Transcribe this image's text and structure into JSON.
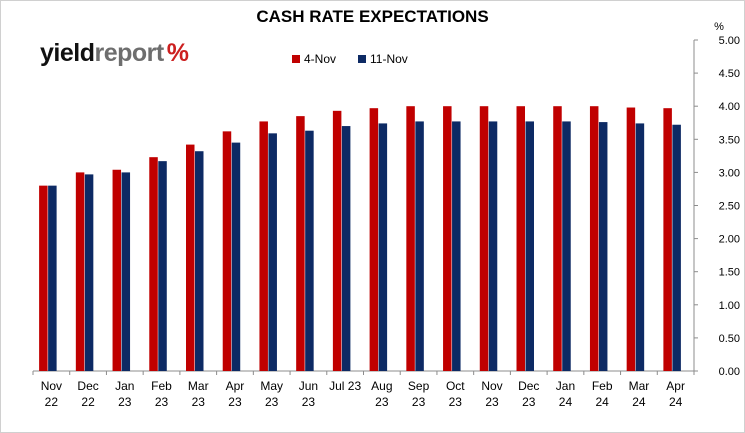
{
  "title": "CASH RATE EXPECTATIONS",
  "logo": {
    "part1": "yield",
    "part2": "report",
    "symbol": "%"
  },
  "chart_data": {
    "type": "bar",
    "title": "CASH RATE EXPECTATIONS",
    "ylabel": "%",
    "ylim": [
      0,
      5
    ],
    "y_ticks": [
      "0.00",
      "0.50",
      "1.00",
      "1.50",
      "2.00",
      "2.50",
      "3.00",
      "3.50",
      "4.00",
      "4.50",
      "5.00"
    ],
    "y_axis_side": "right",
    "legend_position": "top-center",
    "grid": false,
    "categories": [
      [
        "Nov",
        "22"
      ],
      [
        "Dec",
        "22"
      ],
      [
        "Jan",
        "23"
      ],
      [
        "Feb",
        "23"
      ],
      [
        "Mar",
        "23"
      ],
      [
        "Apr",
        "23"
      ],
      [
        "May",
        "23"
      ],
      [
        "Jun",
        "23"
      ],
      [
        "Jul 23",
        ""
      ],
      [
        "Aug",
        "23"
      ],
      [
        "Sep",
        "23"
      ],
      [
        "Oct",
        "23"
      ],
      [
        "Nov",
        "23"
      ],
      [
        "Dec",
        "23"
      ],
      [
        "Jan",
        "24"
      ],
      [
        "Feb",
        "24"
      ],
      [
        "Mar",
        "24"
      ],
      [
        "Apr",
        "24"
      ]
    ],
    "series": [
      {
        "name": "4-Nov",
        "color": "#c00000",
        "values": [
          2.8,
          3.0,
          3.04,
          3.23,
          3.42,
          3.62,
          3.77,
          3.85,
          3.93,
          3.97,
          4.0,
          4.0,
          4.0,
          4.0,
          4.0,
          4.0,
          3.98,
          3.97
        ]
      },
      {
        "name": "11-Nov",
        "color": "#0d2a64",
        "values": [
          2.8,
          2.97,
          3.0,
          3.17,
          3.32,
          3.45,
          3.59,
          3.63,
          3.7,
          3.74,
          3.77,
          3.77,
          3.77,
          3.77,
          3.77,
          3.76,
          3.74,
          3.72
        ]
      }
    ]
  }
}
